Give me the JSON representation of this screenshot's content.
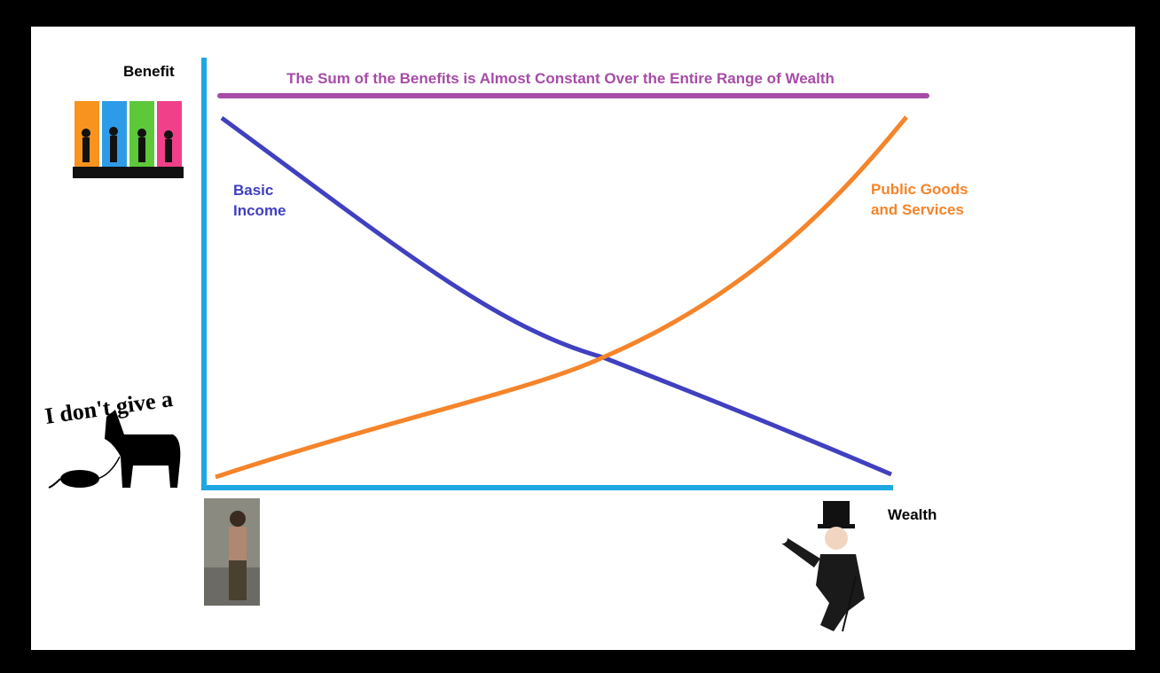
{
  "axis_labels": {
    "y": "Benefit",
    "x": "Wealth"
  },
  "title": "The Sum of the Benefits is Almost Constant Over the Entire Range of Wealth",
  "curves": {
    "basic_income": [
      "Basic",
      "Income"
    ],
    "public_goods": [
      "Public Goods",
      "and Services"
    ]
  },
  "image_text": "I don't give a"
}
